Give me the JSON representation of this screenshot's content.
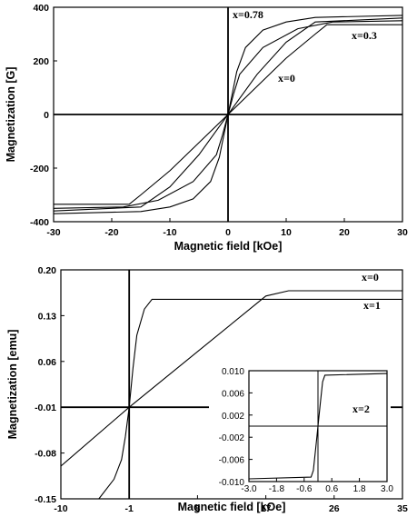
{
  "chart_data": [
    {
      "type": "line",
      "xlabel": "Magnetic field [kOe]",
      "ylabel": "Magnetization [G]",
      "xlim": [
        -30,
        30
      ],
      "ylim": [
        -400,
        400
      ],
      "xticks": [
        "-30",
        "-20",
        "-10",
        "0",
        "10",
        "20",
        "30"
      ],
      "yticks": [
        "400",
        "200",
        "0",
        "-200",
        "-400"
      ],
      "grid": false,
      "series": [
        {
          "name": "x=0.78",
          "x": [
            -30,
            -15,
            -10,
            -6,
            -3,
            -1.5,
            0,
            1.5,
            3,
            6,
            10,
            15,
            30
          ],
          "y": [
            -370,
            -362,
            -345,
            -315,
            -250,
            -160,
            0,
            160,
            250,
            315,
            345,
            362,
            370
          ]
        },
        {
          "name": "x=0.3",
          "x": [
            -30,
            -15,
            -10,
            -5,
            -2,
            0,
            2,
            5,
            10,
            15,
            30
          ],
          "y": [
            -360,
            -345,
            -270,
            -150,
            -60,
            0,
            60,
            150,
            270,
            345,
            360
          ]
        },
        {
          "name": "x=0",
          "x": [
            -30,
            -17,
            -15,
            -10,
            -5,
            0,
            5,
            10,
            15,
            17,
            30
          ],
          "y": [
            -335,
            -335,
            -300,
            -210,
            -105,
            0,
            105,
            210,
            300,
            335,
            335
          ]
        },
        {
          "x": [
            -30,
            -18,
            -12,
            -6,
            -2,
            -1,
            0,
            1,
            2,
            6,
            12,
            18,
            30
          ],
          "y": [
            -350,
            -345,
            -320,
            -250,
            -150,
            -80,
            0,
            80,
            150,
            250,
            320,
            345,
            350
          ]
        }
      ]
    },
    {
      "type": "line",
      "xlabel": "Magnetic field [kOe]",
      "ylabel": "Magnetization [emu]",
      "xlim": [
        -10,
        35
      ],
      "ylim": [
        -0.15,
        0.2
      ],
      "xticks": [
        "-10",
        "-1",
        "8",
        "17",
        "26",
        "35"
      ],
      "yticks": [
        "0.20",
        "0.13",
        "0.06",
        "-0.01",
        "-0.08",
        "-0.15"
      ],
      "grid": false,
      "series": [
        {
          "name": "x=0",
          "x": [
            -10,
            -1,
            17,
            20,
            35
          ],
          "y": [
            -0.1,
            -0.01,
            0.16,
            0.168,
            0.168
          ]
        },
        {
          "name": "x=1",
          "x": [
            -5,
            -3,
            -2,
            -1.5,
            -1,
            -0.5,
            0,
            1,
            2,
            35
          ],
          "y": [
            -0.15,
            -0.12,
            -0.09,
            -0.055,
            -0.01,
            0.05,
            0.1,
            0.14,
            0.155,
            0.155
          ]
        }
      ],
      "inset": {
        "xlim": [
          -3.0,
          3.0
        ],
        "ylim": [
          -0.01,
          0.01
        ],
        "xticks": [
          "-3.0",
          "-1.8",
          "-0.6",
          "0.6",
          "1.8",
          "3.0"
        ],
        "yticks": [
          "0.010",
          "0.006",
          "0.002",
          "-0.002",
          "-0.006",
          "-0.010"
        ],
        "series": [
          {
            "name": "x=2",
            "x": [
              -3,
              -0.3,
              -0.2,
              -0.1,
              0,
              0.1,
              0.2,
              0.3,
              3
            ],
            "y": [
              -0.0095,
              -0.0092,
              -0.008,
              -0.004,
              0,
              0.004,
              0.008,
              0.0092,
              0.0095
            ]
          }
        ]
      }
    }
  ]
}
